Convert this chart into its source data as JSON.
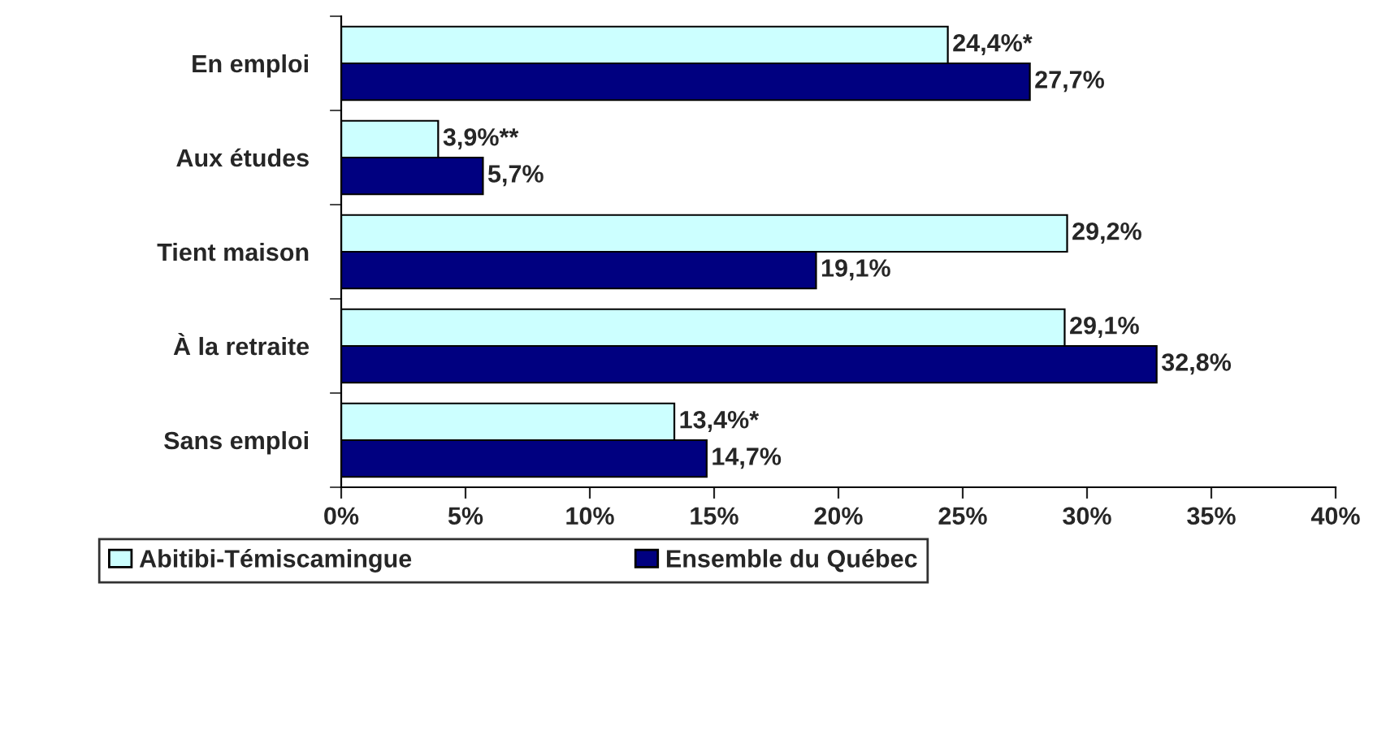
{
  "chart_data": {
    "type": "bar",
    "orientation": "horizontal",
    "categories": [
      "En emploi",
      "Aux études",
      "Tient maison",
      "À la retraite",
      "Sans emploi"
    ],
    "series": [
      {
        "name": "Abitibi-Témiscamingue",
        "color": "#ccffff",
        "values": [
          24.4,
          3.9,
          29.2,
          29.1,
          13.4
        ],
        "value_labels": [
          "24,4%*",
          "3,9%**",
          "29,2%",
          "29,1%",
          "13,4%*"
        ]
      },
      {
        "name": "Ensemble du Québec",
        "color": "#000080",
        "values": [
          27.7,
          5.7,
          19.1,
          32.8,
          14.7
        ],
        "value_labels": [
          "27,7%",
          "5,7%",
          "19,1%",
          "32,8%",
          "14,7%"
        ]
      }
    ],
    "xlim": [
      0,
      40
    ],
    "xticks": [
      {
        "value": 0,
        "label": "0%"
      },
      {
        "value": 5,
        "label": "5%"
      },
      {
        "value": 10,
        "label": "10%"
      },
      {
        "value": 15,
        "label": "15%"
      },
      {
        "value": 20,
        "label": "20%"
      },
      {
        "value": 25,
        "label": "25%"
      },
      {
        "value": 30,
        "label": "30%"
      },
      {
        "value": 35,
        "label": "35%"
      },
      {
        "value": 40,
        "label": "40%"
      }
    ],
    "grid": false,
    "legend": "bottom"
  }
}
